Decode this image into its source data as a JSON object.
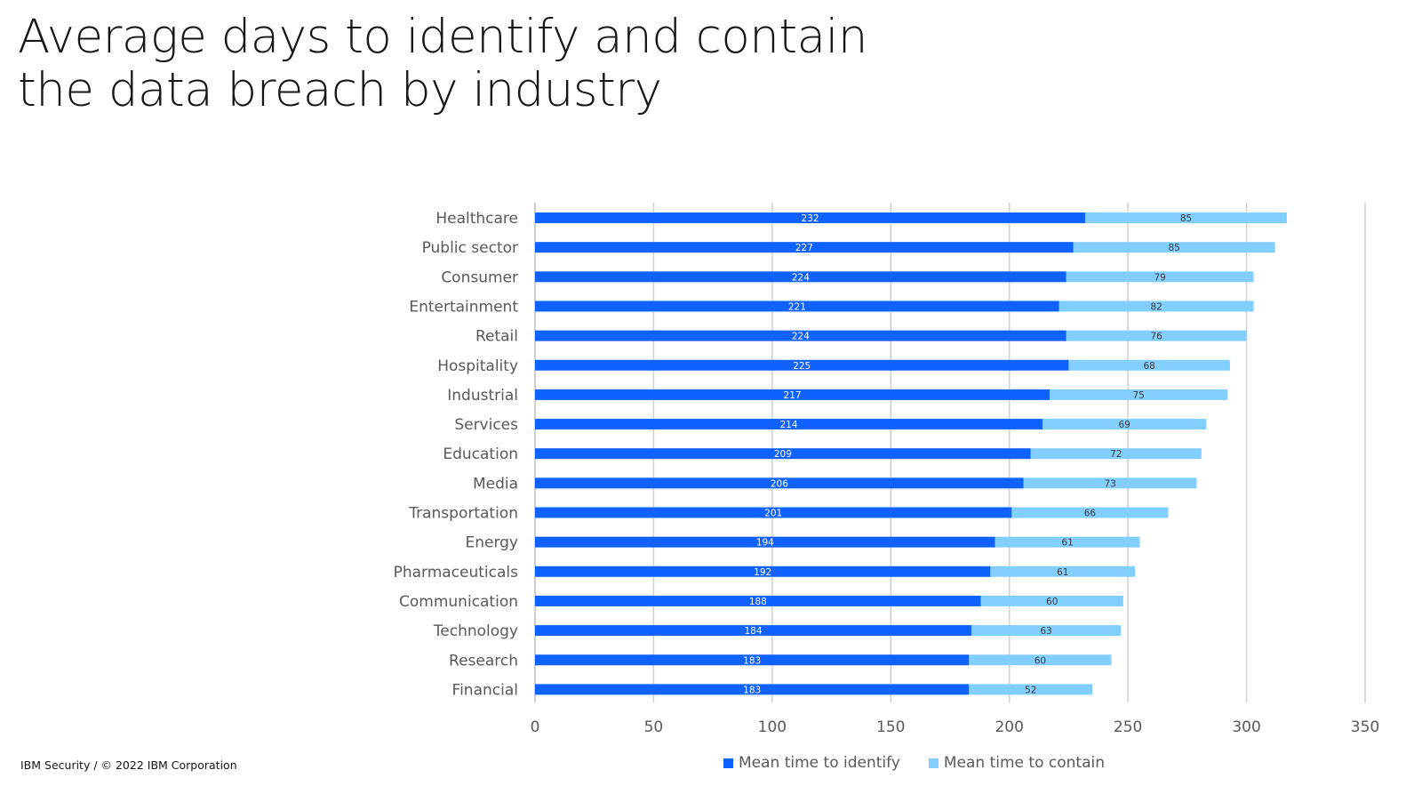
{
  "title_lines": [
    "Average days to identify and contain",
    "the data breach by industry"
  ],
  "footer": "IBM Security / © 2022 IBM Corporation",
  "colors": {
    "identify": "#0f62fe",
    "contain": "#82cfff",
    "grid": "#d0d0d0",
    "label": "#595959"
  },
  "chart_data": {
    "type": "bar",
    "orientation": "horizontal",
    "stacked": true,
    "title": "Average days to identify and contain the data breach by industry",
    "xlim": [
      0,
      350
    ],
    "xticks": [
      0,
      50,
      100,
      150,
      200,
      250,
      300,
      350
    ],
    "grid": true,
    "legend_position": "bottom",
    "categories": [
      "Healthcare",
      "Public sector",
      "Consumer",
      "Entertainment",
      "Retail",
      "Hospitality",
      "Industrial",
      "Services",
      "Education",
      "Media",
      "Transportation",
      "Energy",
      "Pharmaceuticals",
      "Communication",
      "Technology",
      "Research",
      "Financial"
    ],
    "series": [
      {
        "name": "Mean time to identify",
        "values": [
          232,
          227,
          224,
          221,
          224,
          225,
          217,
          214,
          209,
          206,
          201,
          194,
          192,
          188,
          184,
          183,
          183
        ]
      },
      {
        "name": "Mean time to contain",
        "values": [
          85,
          85,
          79,
          82,
          76,
          68,
          75,
          69,
          72,
          73,
          66,
          61,
          61,
          60,
          63,
          60,
          52
        ]
      }
    ]
  }
}
